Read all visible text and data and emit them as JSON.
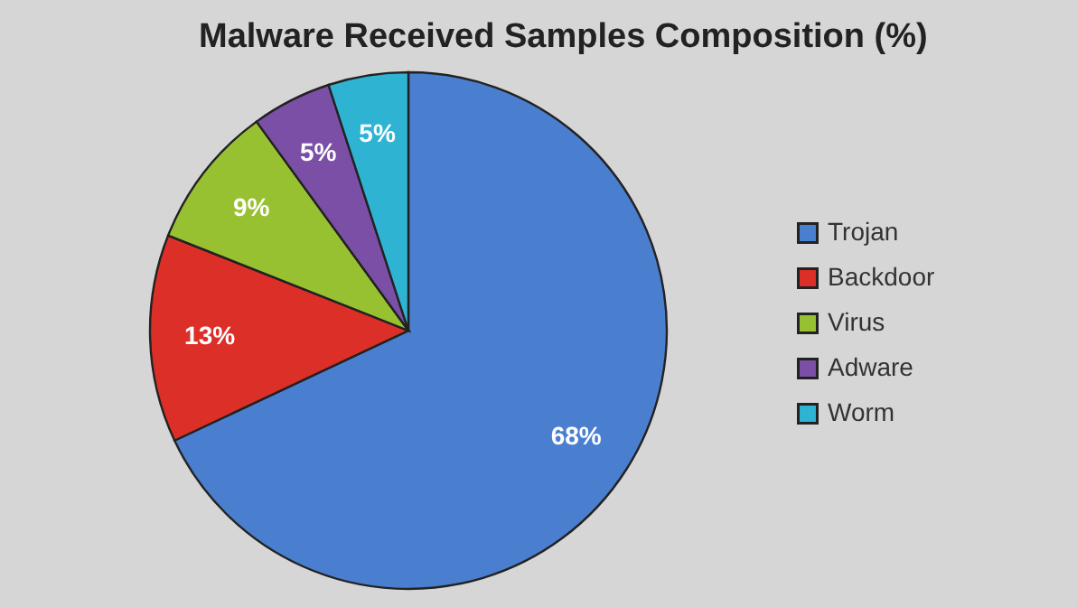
{
  "chart_data": {
    "type": "pie",
    "title": "Malware Received Samples Composition (%)",
    "categories": [
      "Trojan",
      "Backdoor",
      "Virus",
      "Adware",
      "Worm"
    ],
    "values": [
      68,
      13,
      9,
      5,
      5
    ],
    "colors": [
      "#4a7fd0",
      "#dc2f28",
      "#98c132",
      "#7b4fa6",
      "#2fb3d3"
    ],
    "value_labels": [
      "68%",
      "13%",
      "9%",
      "5%",
      "5%"
    ],
    "legend": "right"
  }
}
